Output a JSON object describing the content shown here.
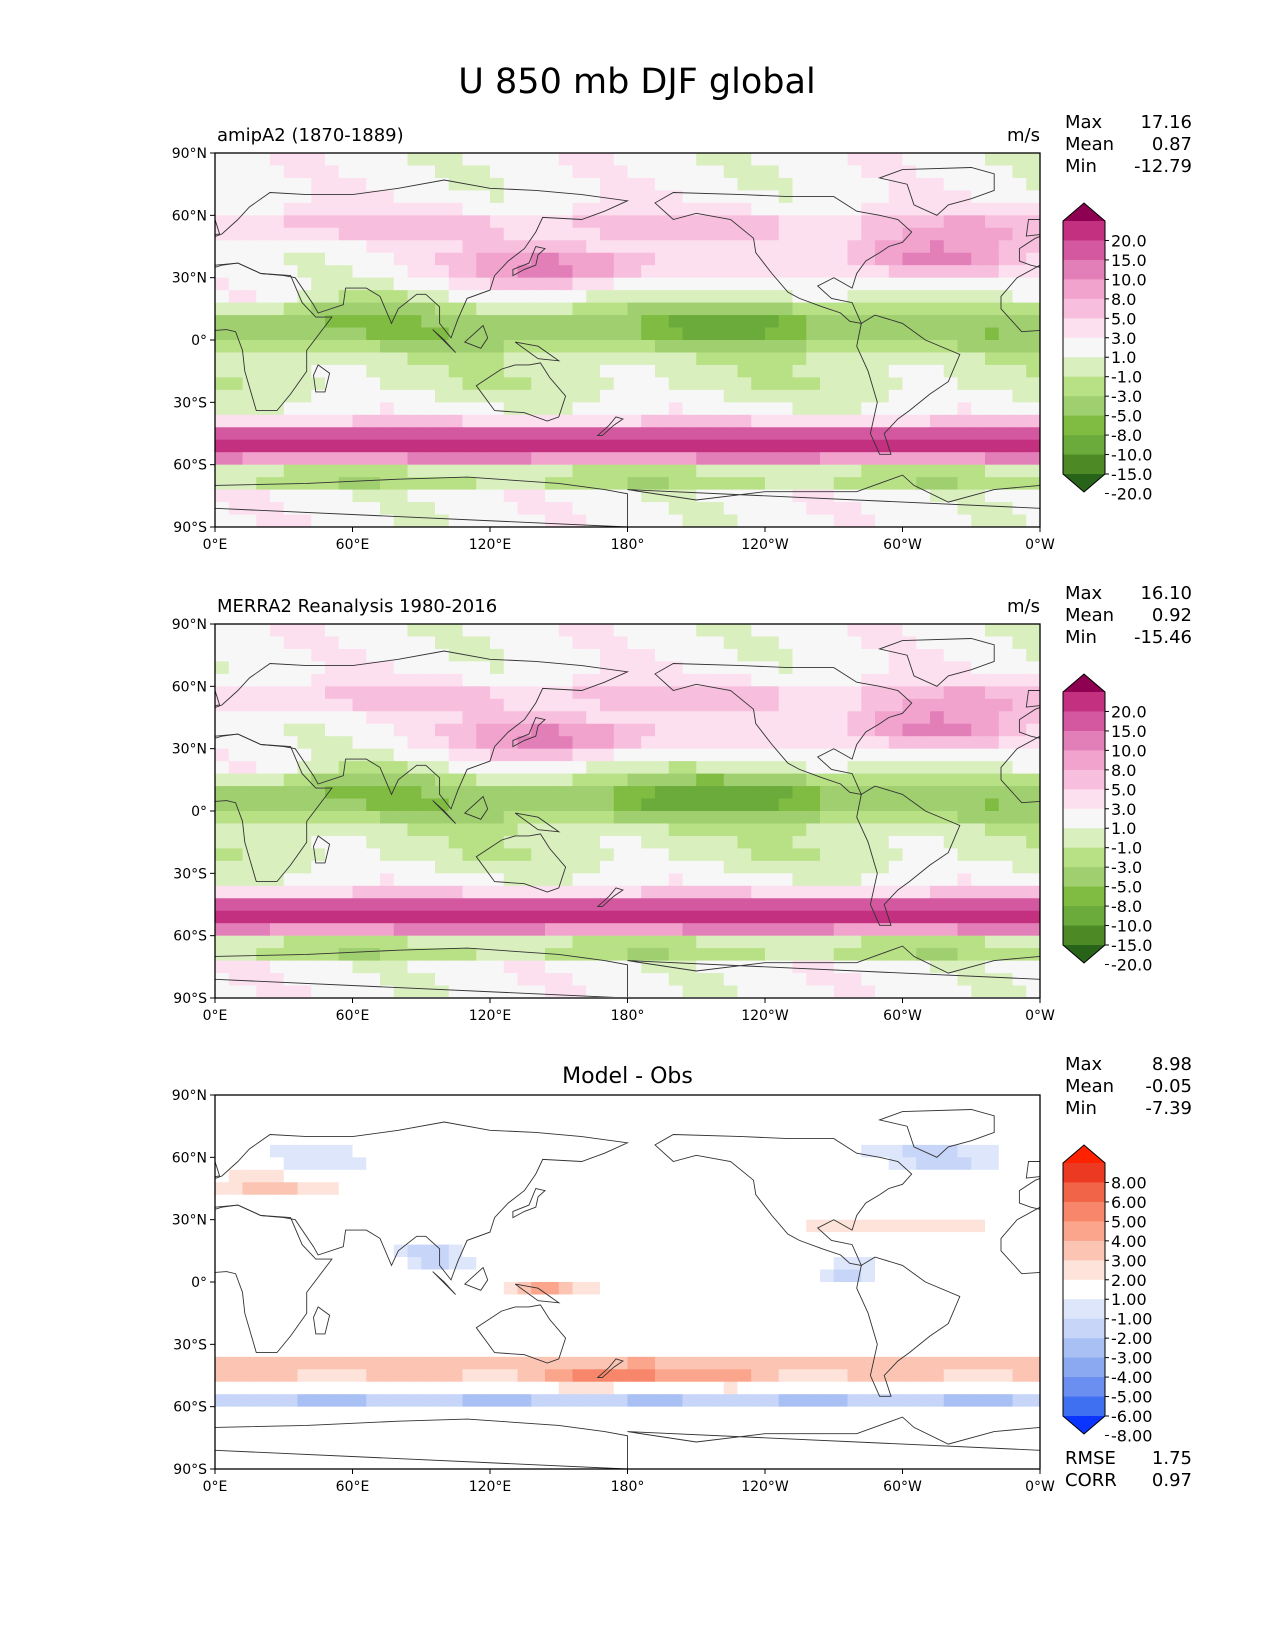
{
  "figure": {
    "title": "U 850 mb DJF global",
    "x_tick_labels": [
      "0°E",
      "60°E",
      "120°E",
      "180°",
      "120°W",
      "60°W",
      "0°W"
    ],
    "y_tick_labels": [
      "90°N",
      "60°N",
      "30°N",
      "0°",
      "30°S",
      "60°S",
      "90°S"
    ]
  },
  "colors": {
    "positive_scale": [
      "#f7f7f7",
      "#fde0ef",
      "#f7bfdd",
      "#f1a3cd",
      "#e27fb8",
      "#d4589f",
      "#c2307f",
      "#8e0152"
    ],
    "negative_scale": [
      "#f7f7f7",
      "#e6f5d0",
      "#d2ebb0",
      "#b8e186",
      "#9fcf6e",
      "#7fbc41",
      "#5a9b2e",
      "#276419"
    ],
    "diff_positive": [
      "#ffffff",
      "#fde3d9",
      "#fcc5b3",
      "#faa58c",
      "#f7866a",
      "#f26447",
      "#ff2200"
    ],
    "diff_negative": [
      "#ffffff",
      "#dde6fb",
      "#c6d5f8",
      "#a9c0f5",
      "#8ba9f1",
      "#6b8ff0",
      "#0a35ff"
    ],
    "coastline": "#333333"
  },
  "chart_data": [
    {
      "type": "heatmap",
      "title": "amipA2 (1870-1889)",
      "units": "m/s",
      "stats": {
        "max_label": "Max",
        "max": "17.16",
        "mean_label": "Mean",
        "mean": "0.87",
        "min_label": "Min",
        "min": "-12.79"
      },
      "xlim": [
        0,
        360
      ],
      "ylim": [
        -90,
        90
      ],
      "colorbar": {
        "levels": [
          "20.0",
          "15.0",
          "10.0",
          "8.0",
          "5.0",
          "3.0",
          "1.0",
          "-1.0",
          "-3.0",
          "-5.0",
          "-8.0",
          "-10.0",
          "-15.0",
          "-20.0"
        ],
        "top_color": "#8e0152",
        "bottom_color": "#276419"
      }
    },
    {
      "type": "heatmap",
      "title": "MERRA2 Reanalysis 1980-2016",
      "units": "m/s",
      "stats": {
        "max_label": "Max",
        "max": "16.10",
        "mean_label": "Mean",
        "mean": "0.92",
        "min_label": "Min",
        "min": "-15.46"
      },
      "xlim": [
        0,
        360
      ],
      "ylim": [
        -90,
        90
      ],
      "colorbar": {
        "levels": [
          "20.0",
          "15.0",
          "10.0",
          "8.0",
          "5.0",
          "3.0",
          "1.0",
          "-1.0",
          "-3.0",
          "-5.0",
          "-8.0",
          "-10.0",
          "-15.0",
          "-20.0"
        ],
        "top_color": "#8e0152",
        "bottom_color": "#276419"
      }
    },
    {
      "type": "heatmap",
      "title": "Model - Obs",
      "units": "",
      "stats": {
        "max_label": "Max",
        "max": "8.98",
        "mean_label": "Mean",
        "mean": "-0.05",
        "min_label": "Min",
        "min": "-7.39"
      },
      "metrics": {
        "rmse_label": "RMSE",
        "rmse": "1.75",
        "corr_label": "CORR",
        "corr": "0.97"
      },
      "xlim": [
        0,
        360
      ],
      "ylim": [
        -90,
        90
      ],
      "colorbar": {
        "levels": [
          "8.00",
          "6.00",
          "5.00",
          "4.00",
          "3.00",
          "2.00",
          "1.00",
          "-1.00",
          "-2.00",
          "-3.00",
          "-4.00",
          "-5.00",
          "-6.00",
          "-8.00"
        ],
        "top_color": "#ff2200",
        "bottom_color": "#0a35ff"
      }
    }
  ]
}
